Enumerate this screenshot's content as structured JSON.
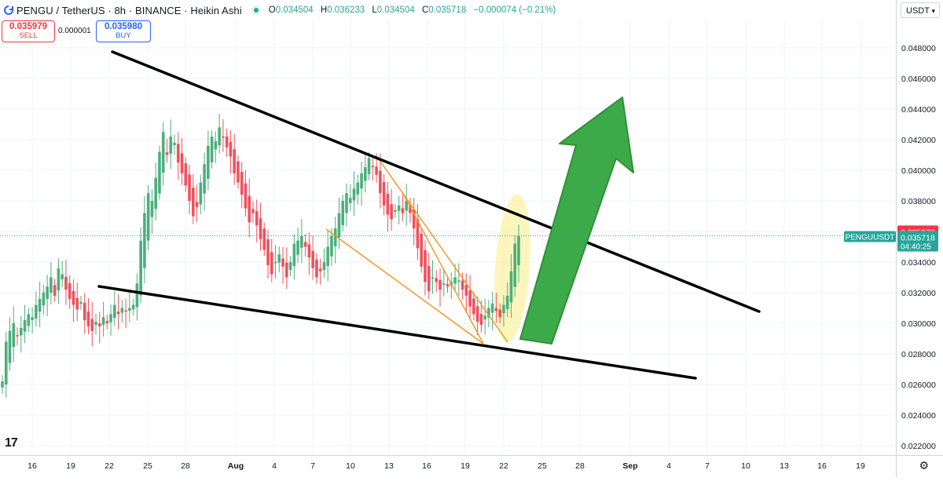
{
  "header": {
    "title": "PENGU / TetherUS · 8h · BINANCE · Heikin Ashi",
    "ohlc": [
      {
        "k": "O",
        "v": "0.034504"
      },
      {
        "k": "H",
        "v": "0.036233"
      },
      {
        "k": "L",
        "v": "0.034504"
      },
      {
        "k": "C",
        "v": "0.035718"
      }
    ],
    "change": "−0.000074 (−0.21%)"
  },
  "trade": {
    "sell_price": "0.035979",
    "sell_label": "SELL",
    "spread": "0.000001",
    "buy_price": "0.035980",
    "buy_label": "BUY"
  },
  "currency": "USDT",
  "colors": {
    "up": "#4caf7d",
    "down": "#f0515d",
    "tag": "#26a69a",
    "wedge": "#000000",
    "channel": "#f7931e",
    "arrow": "#3daa4a",
    "highlight": "#fbf3a6"
  },
  "chart_data": {
    "type": "candlestick",
    "style": "Heikin Ashi",
    "symbol": "PENGU / TetherUS",
    "interval": "8h",
    "x_ticks": [
      "16",
      "19",
      "22",
      "25",
      "28",
      "Aug",
      "4",
      "7",
      "10",
      "13",
      "16",
      "19",
      "22",
      "25",
      "28",
      "Sep",
      "4",
      "7",
      "10",
      "13",
      "16",
      "19"
    ],
    "y_ticks": [
      "0.048000",
      "0.046000",
      "0.044000",
      "0.042000",
      "0.040000",
      "0.038000",
      "0.036000",
      "0.034000",
      "0.032000",
      "0.030000",
      "0.028000",
      "0.026000",
      "0.024000",
      "0.022000"
    ],
    "ylim": [
      0.0215,
      0.0492
    ],
    "last_price_label": "PENGUUSDT",
    "last_price": "0.035718",
    "countdown": "04:40:25",
    "sell_line_price": "0.035979",
    "closes": [
      0.0262,
      0.0288,
      0.0295,
      0.03,
      0.0292,
      0.0297,
      0.0302,
      0.0306,
      0.0304,
      0.0312,
      0.0316,
      0.032,
      0.0324,
      0.033,
      0.0318,
      0.0336,
      0.0332,
      0.0322,
      0.0316,
      0.0312,
      0.0309,
      0.0314,
      0.0302,
      0.0298,
      0.0295,
      0.0301,
      0.0298,
      0.0304,
      0.03,
      0.0306,
      0.0312,
      0.0306,
      0.031,
      0.0308,
      0.031,
      0.0312,
      0.0326,
      0.0354,
      0.0372,
      0.0385,
      0.038,
      0.0395,
      0.0412,
      0.0425,
      0.041,
      0.0422,
      0.0418,
      0.0405,
      0.0398,
      0.039,
      0.038,
      0.037,
      0.0376,
      0.0392,
      0.0404,
      0.0416,
      0.0422,
      0.0419,
      0.0428,
      0.0422,
      0.0415,
      0.0409,
      0.0398,
      0.0392,
      0.0384,
      0.0375,
      0.0366,
      0.0372,
      0.0364,
      0.0355,
      0.0348,
      0.0338,
      0.0332,
      0.034,
      0.0345,
      0.0337,
      0.033,
      0.034,
      0.0352,
      0.0354,
      0.0357,
      0.035,
      0.0343,
      0.0336,
      0.033,
      0.0334,
      0.034,
      0.035,
      0.0357,
      0.0362,
      0.0372,
      0.038,
      0.0385,
      0.0382,
      0.0388,
      0.0392,
      0.0398,
      0.0402,
      0.0408,
      0.0402,
      0.0397,
      0.0385,
      0.0377,
      0.0371,
      0.0368,
      0.0374,
      0.0377,
      0.0372,
      0.038,
      0.0372,
      0.0362,
      0.0349,
      0.0337,
      0.0327,
      0.0321,
      0.033,
      0.0327,
      0.0322,
      0.0326,
      0.0324,
      0.0327,
      0.033,
      0.0328,
      0.0322,
      0.0318,
      0.0311,
      0.0306,
      0.0301,
      0.0299,
      0.0305,
      0.031,
      0.0313,
      0.0308,
      0.0304,
      0.0312,
      0.0318,
      0.0334,
      0.0352,
      0.0357
    ],
    "annotations": {
      "falling_wedge": "black trendlines",
      "inner_channel": "orange lines",
      "breakout_arrow": "green arrow pointing up",
      "highlight": "yellow ellipse around recent candles"
    }
  }
}
